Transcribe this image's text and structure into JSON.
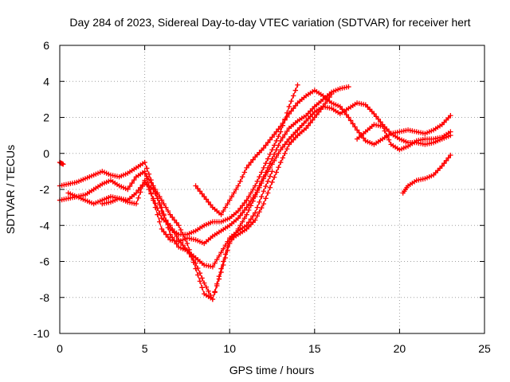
{
  "chart_data": {
    "type": "scatter",
    "title": "Day 284 of 2023, Sidereal Day-to-day VTEC variation (SDTVAR) for receiver hert",
    "xlabel": "GPS time / hours",
    "ylabel": "SDTVAR / TECUs",
    "xlim": [
      0,
      25
    ],
    "ylim": [
      -10,
      6
    ],
    "xticks": [
      "0",
      "5",
      "10",
      "15",
      "20",
      "25"
    ],
    "yticks": [
      "-10",
      "-8",
      "-6",
      "-4",
      "-2",
      "0",
      "2",
      "4",
      "6"
    ],
    "grid": true,
    "marker": "plus",
    "color": "#ff0000",
    "series": [
      {
        "x": [
          0.0,
          0.2
        ],
        "y": [
          -0.5,
          -0.6
        ]
      },
      {
        "x": [
          0.0,
          0.5,
          1.0,
          1.5,
          2.0,
          2.5,
          3.0,
          3.5,
          4.0,
          4.5,
          5.0,
          5.5,
          6.0,
          6.5,
          7.0,
          7.5,
          8.0,
          8.5,
          9.0,
          9.5,
          10.0,
          10.5,
          11.0,
          11.5,
          12.0,
          12.5,
          13.0,
          13.5,
          14.0
        ],
        "y": [
          -1.8,
          -1.7,
          -1.6,
          -1.4,
          -1.2,
          -1.0,
          -1.2,
          -1.3,
          -1.1,
          -0.8,
          -0.5,
          -1.8,
          -3.2,
          -4.2,
          -4.5,
          -4.5,
          -4.3,
          -4.0,
          -3.8,
          -3.8,
          -3.6,
          -3.2,
          -2.6,
          -1.8,
          -0.8,
          0.2,
          1.2,
          2.6,
          3.8
        ]
      },
      {
        "x": [
          0.0,
          0.5,
          1.0,
          1.5,
          2.0,
          2.5,
          3.0,
          3.5,
          4.0,
          4.5,
          5.0,
          5.5,
          6.0,
          6.5,
          7.0,
          7.5,
          8.0,
          8.5,
          9.0,
          9.5,
          10.0,
          10.5,
          11.0,
          11.5,
          12.0,
          12.5,
          13.0,
          13.5,
          14.0,
          14.5,
          15.0,
          15.5,
          16.0,
          16.5,
          17.0
        ],
        "y": [
          -2.6,
          -2.5,
          -2.4,
          -2.3,
          -2.0,
          -1.7,
          -1.5,
          -1.8,
          -2.0,
          -1.3,
          -1.0,
          -2.6,
          -4.2,
          -4.8,
          -4.9,
          -4.7,
          -4.8,
          -5.0,
          -4.6,
          -4.3,
          -4.0,
          -3.6,
          -3.0,
          -2.3,
          -1.3,
          -0.3,
          0.7,
          1.4,
          1.8,
          2.1,
          2.6,
          3.0,
          3.4,
          3.6,
          3.7
        ]
      },
      {
        "x": [
          0.5,
          1.0,
          1.5,
          2.0,
          2.5,
          3.0,
          3.5,
          4.0,
          4.5,
          5.0,
          5.5,
          6.0,
          6.5,
          7.0,
          7.5,
          8.0,
          8.5,
          9.0,
          9.5,
          10.0,
          10.5,
          11.0,
          11.5,
          12.0,
          12.5
        ],
        "y": [
          -2.2,
          -2.4,
          -2.6,
          -2.8,
          -2.6,
          -2.4,
          -2.5,
          -2.6,
          -2.2,
          -1.6,
          -2.0,
          -3.0,
          -4.5,
          -5.2,
          -5.4,
          -5.8,
          -6.2,
          -6.3,
          -5.5,
          -4.7,
          -4.3,
          -4.0,
          -3.3,
          -2.1,
          -1.0
        ]
      },
      {
        "x": [
          2.5,
          3.0,
          3.5,
          4.0,
          4.5,
          5.0,
          5.5,
          6.0,
          6.5,
          7.0,
          7.5,
          8.0,
          8.5,
          9.0,
          9.5,
          10.0,
          10.5,
          11.0,
          11.5,
          12.0,
          12.5,
          13.0,
          13.5,
          14.0,
          14.5,
          15.0,
          15.5,
          16.0
        ],
        "y": [
          -2.8,
          -2.7,
          -2.5,
          -2.7,
          -2.8,
          -1.5,
          -2.5,
          -3.6,
          -4.0,
          -4.8,
          -5.4,
          -6.1,
          -7.2,
          -8.1,
          -6.4,
          -4.8,
          -4.5,
          -4.2,
          -3.7,
          -2.8,
          -1.6,
          -0.5,
          0.5,
          1.0,
          1.4,
          2.0,
          2.6,
          3.3
        ]
      },
      {
        "x": [
          5.0,
          5.5,
          6.0,
          6.5,
          7.0,
          7.5,
          8.0,
          8.5,
          9.0,
          9.5,
          10.0,
          10.5,
          11.0,
          11.5,
          12.0,
          12.5,
          13.0,
          13.5,
          14.0,
          14.5,
          15.0,
          15.5,
          16.0,
          16.5,
          17.0,
          17.5,
          18.0,
          18.5,
          19.0,
          19.5,
          20.0,
          20.5,
          21.0,
          21.5,
          22.0,
          22.5,
          23.0
        ],
        "y": [
          -1.1,
          -1.8,
          -2.6,
          -3.4,
          -4.0,
          -5.0,
          -6.4,
          -7.8,
          -8.1,
          -6.6,
          -5.0,
          -4.2,
          -3.4,
          -2.4,
          -1.4,
          -0.6,
          0.2,
          0.8,
          1.3,
          1.8,
          2.3,
          2.6,
          2.5,
          2.2,
          2.5,
          2.8,
          2.7,
          2.2,
          1.6,
          1.1,
          1.2,
          1.3,
          1.2,
          1.1,
          1.3,
          1.6,
          2.1
        ]
      },
      {
        "x": [
          8.0,
          8.5,
          9.0,
          9.5,
          10.0,
          10.5,
          11.0,
          11.5,
          12.0,
          12.5,
          13.0,
          13.5,
          14.0,
          14.5,
          15.0,
          15.5,
          16.0,
          16.5,
          17.0,
          17.5,
          18.0,
          18.5,
          19.0,
          19.5,
          20.0,
          20.5,
          21.0,
          21.5,
          22.0,
          22.5,
          23.0
        ],
        "y": [
          -1.8,
          -2.4,
          -3.0,
          -3.4,
          -2.6,
          -1.8,
          -0.8,
          -0.2,
          0.3,
          0.9,
          1.5,
          2.2,
          2.8,
          3.2,
          3.5,
          3.2,
          2.8,
          2.6,
          2.0,
          1.3,
          0.7,
          0.5,
          0.8,
          1.1,
          0.8,
          0.6,
          0.6,
          0.5,
          0.6,
          0.8,
          1.0
        ]
      },
      {
        "x": [
          17.5,
          18.0,
          18.5,
          19.0,
          19.5,
          20.0,
          20.5,
          21.0,
          21.5,
          22.0,
          22.5,
          23.0
        ],
        "y": [
          0.8,
          1.2,
          1.6,
          1.5,
          0.5,
          0.2,
          0.4,
          0.7,
          0.8,
          0.8,
          0.9,
          1.2
        ]
      },
      {
        "x": [
          20.2,
          20.5,
          21.0,
          21.5,
          22.0,
          22.5,
          23.0
        ],
        "y": [
          -2.2,
          -1.8,
          -1.5,
          -1.4,
          -1.2,
          -0.7,
          -0.1
        ]
      }
    ]
  }
}
